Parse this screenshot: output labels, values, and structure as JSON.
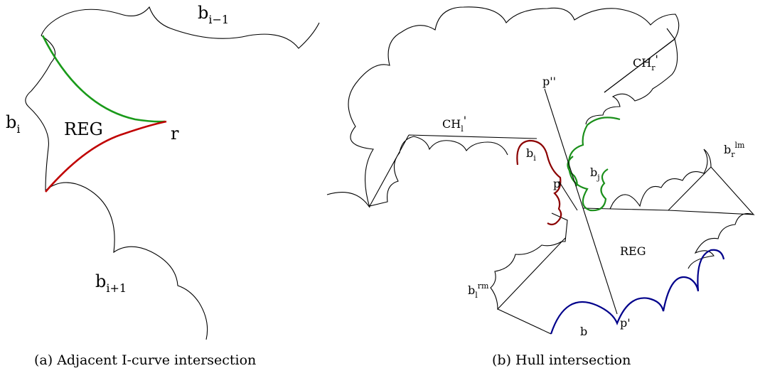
{
  "panel_a": {
    "caption": "(a) Adjacent I-curve intersection",
    "labels": {
      "b_prev_base": "b",
      "b_prev_sub": "i−1",
      "b_i_base": "b",
      "b_i_sub": "i",
      "b_next_base": "b",
      "b_next_sub": "i+1",
      "reg": "REG",
      "r": "r"
    },
    "colors": {
      "upper_curve": "#1a9a1a",
      "lower_curve": "#c00000"
    }
  },
  "panel_b": {
    "caption": "(b) Hull intersection",
    "labels": {
      "chl_base": "CH",
      "chl_sub": "l",
      "chl_prime": "'",
      "chr_base": "CH",
      "chr_sub": "r",
      "chr_prime": "'",
      "p2": "p''",
      "bi_base": "b",
      "bi_sub": "i",
      "bj_base": "b",
      "bj_sub": "j",
      "p": "p",
      "brlm_base": "b",
      "brlm_sub": "r",
      "brlm_sup": "lm",
      "blrm_base": "b",
      "blrm_sub": "l",
      "blrm_sup": "rm",
      "reg": "REG",
      "b": "b",
      "p1": "p'"
    },
    "colors": {
      "b_i_chain": "#8b0000",
      "b_j_chain": "#1a8f1a",
      "b_chain": "#00008b"
    }
  }
}
